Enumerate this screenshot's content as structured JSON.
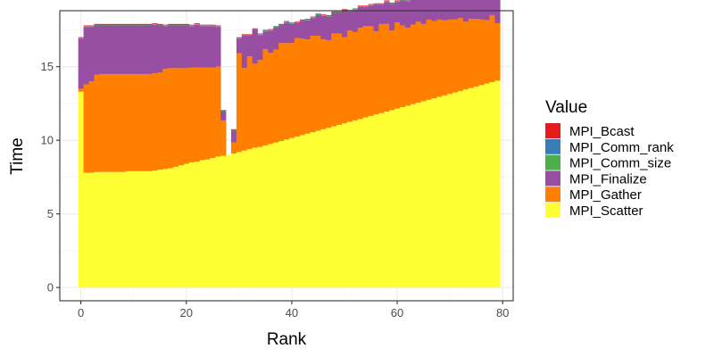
{
  "chart_data": {
    "type": "bar",
    "stacked": true,
    "xlabel": "Rank",
    "ylabel": "Time",
    "xlim": [
      -4,
      82
    ],
    "ylim": [
      -0.9,
      18.8
    ],
    "xticks": [
      0,
      20,
      40,
      60,
      80
    ],
    "yticks": [
      0,
      5,
      10,
      15
    ],
    "grid": true,
    "legend": {
      "title": "Value",
      "position": "right"
    },
    "x": [
      0,
      1,
      2,
      3,
      4,
      5,
      6,
      7,
      8,
      9,
      10,
      11,
      12,
      13,
      14,
      15,
      16,
      17,
      18,
      19,
      20,
      21,
      22,
      23,
      24,
      25,
      26,
      27,
      28,
      29,
      30,
      31,
      32,
      33,
      34,
      35,
      36,
      37,
      38,
      39,
      40,
      41,
      42,
      43,
      44,
      45,
      46,
      47,
      48,
      49,
      50,
      51,
      52,
      53,
      54,
      55,
      56,
      57,
      58,
      59,
      60,
      61,
      62,
      63,
      64,
      65,
      66,
      67,
      68,
      69,
      70,
      71,
      72,
      73,
      74,
      75,
      76,
      77,
      78,
      79
    ],
    "series": [
      {
        "name": "MPI_Scatter",
        "color": "#FFFF33",
        "values": [
          13.3,
          7.8,
          7.8,
          7.85,
          7.85,
          7.85,
          7.85,
          7.85,
          7.85,
          7.9,
          7.9,
          7.9,
          7.9,
          7.9,
          7.95,
          8.0,
          8.05,
          8.1,
          8.2,
          8.3,
          8.4,
          8.5,
          8.55,
          8.65,
          8.7,
          8.8,
          8.9,
          8.95,
          9.0,
          9.1,
          9.2,
          9.3,
          9.4,
          9.5,
          9.55,
          9.65,
          9.75,
          9.85,
          9.95,
          10.05,
          10.15,
          10.25,
          10.35,
          10.45,
          10.55,
          10.65,
          10.75,
          10.85,
          10.95,
          11.05,
          11.15,
          11.25,
          11.35,
          11.45,
          11.55,
          11.65,
          11.75,
          11.85,
          11.95,
          12.05,
          12.15,
          12.25,
          12.35,
          12.45,
          12.55,
          12.65,
          12.75,
          12.85,
          12.95,
          13.05,
          13.15,
          13.25,
          13.35,
          13.45,
          13.55,
          13.65,
          13.75,
          13.85,
          13.95,
          14.05
        ]
      },
      {
        "name": "MPI_Gather",
        "color": "#FF7F00",
        "values": [
          0.2,
          6.0,
          6.2,
          6.6,
          6.65,
          6.65,
          6.65,
          6.65,
          6.65,
          6.6,
          6.6,
          6.6,
          6.6,
          6.6,
          6.6,
          6.6,
          6.8,
          6.8,
          6.7,
          6.6,
          6.5,
          6.45,
          6.4,
          6.3,
          6.25,
          6.15,
          6.1,
          2.4,
          0,
          0.75,
          6.7,
          5.6,
          6.3,
          5.7,
          5.9,
          6.55,
          6.2,
          6.3,
          6.65,
          6.55,
          6.45,
          6.7,
          6.55,
          6.4,
          6.55,
          6.45,
          6.1,
          5.95,
          6.3,
          6.2,
          5.85,
          6.2,
          6.0,
          6.2,
          6.2,
          6.1,
          5.65,
          6.05,
          5.95,
          5.4,
          5.85,
          5.55,
          5.3,
          5.4,
          5.5,
          5.25,
          5.45,
          5.25,
          5.25,
          5.1,
          5.05,
          4.95,
          4.95,
          4.6,
          4.7,
          4.6,
          4.45,
          4.3,
          4.55,
          3.9
        ]
      },
      {
        "name": "MPI_Finalize",
        "color": "#984EA3",
        "values": [
          3.4,
          3.9,
          3.7,
          3.35,
          3.3,
          3.3,
          3.3,
          3.3,
          3.3,
          3.3,
          3.3,
          3.3,
          3.3,
          3.3,
          3.3,
          3.2,
          2.9,
          2.9,
          2.9,
          2.9,
          2.9,
          2.8,
          2.9,
          2.8,
          2.8,
          2.8,
          2.7,
          0.6,
          0,
          0.8,
          1.0,
          2.2,
          1.4,
          2.3,
          1.7,
          1.2,
          1.5,
          1.5,
          1.2,
          1.4,
          1.3,
          1.0,
          1.2,
          1.3,
          1.2,
          1.4,
          1.6,
          1.6,
          1.4,
          1.4,
          1.8,
          1.3,
          1.5,
          1.4,
          1.3,
          1.4,
          1.8,
          1.3,
          1.5,
          1.8,
          1.4,
          1.7,
          1.8,
          1.8,
          1.7,
          1.9,
          1.6,
          1.8,
          1.7,
          1.8,
          1.8,
          1.8,
          1.8,
          2.0,
          1.9,
          1.9,
          2.0,
          1.9,
          1.5,
          2.1
        ]
      },
      {
        "name": "MPI_Comm_size",
        "color": "#4DAF4A",
        "values": [
          0.03,
          0.03,
          0.03,
          0.03,
          0.03,
          0.03,
          0.03,
          0.03,
          0.03,
          0.03,
          0.03,
          0.03,
          0.03,
          0.03,
          0.03,
          0.03,
          0.03,
          0.03,
          0.03,
          0.03,
          0.03,
          0.03,
          0.03,
          0.03,
          0.03,
          0.03,
          0.03,
          0.03,
          0,
          0.03,
          0.03,
          0.03,
          0.03,
          0.03,
          0.03,
          0.03,
          0.03,
          0.03,
          0.03,
          0.03,
          0.03,
          0.03,
          0.03,
          0.03,
          0.03,
          0.03,
          0.03,
          0.03,
          0.03,
          0.03,
          0.03,
          0.03,
          0.03,
          0.03,
          0.03,
          0.03,
          0.03,
          0.03,
          0.03,
          0.03,
          0.03,
          0.03,
          0.03,
          0.03,
          0.03,
          0.03,
          0.03,
          0.03,
          0.03,
          0.03,
          0.03,
          0.03,
          0.03,
          0.03,
          0.03,
          0.03,
          0.03,
          0.03,
          0.03,
          0.03
        ]
      },
      {
        "name": "MPI_Comm_rank",
        "color": "#377EB8",
        "values": [
          0.03,
          0.03,
          0.03,
          0.03,
          0.03,
          0.03,
          0.03,
          0.03,
          0.03,
          0.03,
          0.03,
          0.03,
          0.03,
          0.03,
          0.03,
          0.03,
          0.03,
          0.03,
          0.03,
          0.03,
          0.03,
          0.03,
          0.03,
          0.03,
          0.03,
          0.03,
          0.03,
          0.03,
          0,
          0.03,
          0.03,
          0.03,
          0.03,
          0.03,
          0.03,
          0.03,
          0.03,
          0.03,
          0.03,
          0.03,
          0.03,
          0.03,
          0.03,
          0.03,
          0.03,
          0.03,
          0.03,
          0.03,
          0.03,
          0.03,
          0.03,
          0.03,
          0.03,
          0.03,
          0.03,
          0.03,
          0.03,
          0.03,
          0.03,
          0.03,
          0.03,
          0.03,
          0.03,
          0.03,
          0.03,
          0.03,
          0.03,
          0.03,
          0.03,
          0.03,
          0.03,
          0.03,
          0.03,
          0.03,
          0.03,
          0.03,
          0.03,
          0.03,
          0.03,
          0.03
        ]
      },
      {
        "name": "MPI_Bcast",
        "color": "#E41A1C",
        "values": [
          0.04,
          0.04,
          0.04,
          0.04,
          0.04,
          0.04,
          0.04,
          0.04,
          0.04,
          0.04,
          0.04,
          0.04,
          0.04,
          0.04,
          0.04,
          0.04,
          0.04,
          0.04,
          0.04,
          0.04,
          0.04,
          0.04,
          0.04,
          0.04,
          0.04,
          0.04,
          0.04,
          0.04,
          0,
          0.04,
          0.04,
          0.04,
          0.04,
          0.04,
          0.04,
          0.04,
          0.04,
          0.04,
          0.04,
          0.04,
          0.04,
          0.04,
          0.04,
          0.04,
          0.04,
          0.04,
          0.04,
          0.04,
          0.04,
          0.04,
          0.04,
          0.04,
          0.04,
          0.04,
          0.04,
          0.04,
          0.04,
          0.04,
          0.04,
          0.04,
          0.04,
          0.04,
          0.04,
          0.04,
          0.04,
          0.04,
          0.04,
          0.04,
          0.04,
          0.04,
          0.04,
          0.04,
          0.04,
          0.04,
          0.04,
          0.04,
          0.04,
          0.04,
          0.04,
          0.04
        ]
      }
    ],
    "legend_items": [
      {
        "label": "MPI_Bcast",
        "color": "#E41A1C"
      },
      {
        "label": "MPI_Comm_rank",
        "color": "#377EB8"
      },
      {
        "label": "MPI_Comm_size",
        "color": "#4DAF4A"
      },
      {
        "label": "MPI_Finalize",
        "color": "#984EA3"
      },
      {
        "label": "MPI_Gather",
        "color": "#FF7F00"
      },
      {
        "label": "MPI_Scatter",
        "color": "#FFFF33"
      }
    ]
  }
}
